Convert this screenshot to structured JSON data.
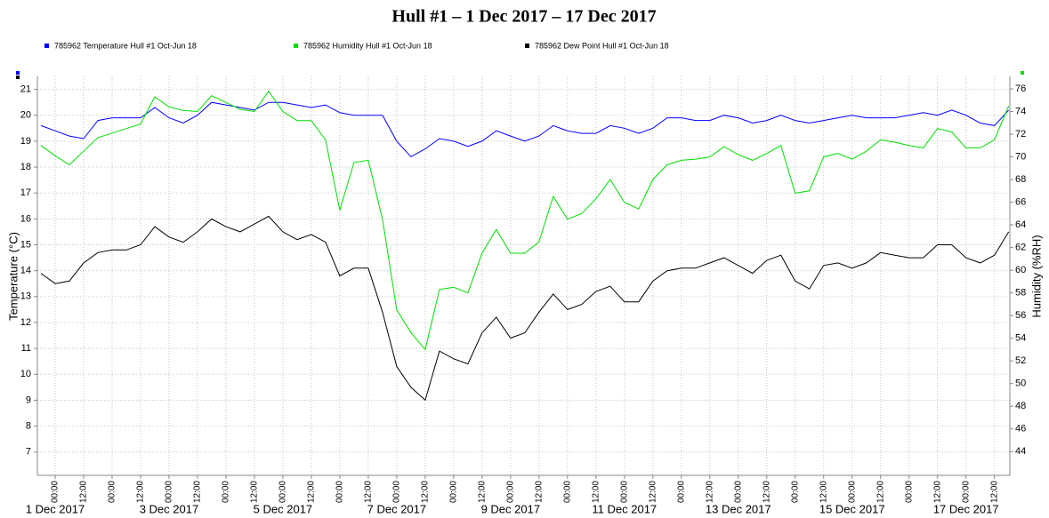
{
  "chart_data": {
    "type": "line",
    "title": "Hull #1 – 1 Dec 2017 – 17 Dec 2017",
    "ylabel": "Temperature (°C)",
    "y2label": "Humidity (%RH)",
    "legend": "top",
    "grid": true,
    "x": [
      "2017-11-30 18:00",
      "2017-12-01 00:00",
      "2017-12-01 06:00",
      "2017-12-01 12:00",
      "2017-12-01 18:00",
      "2017-12-02 00:00",
      "2017-12-02 06:00",
      "2017-12-02 12:00",
      "2017-12-02 18:00",
      "2017-12-03 00:00",
      "2017-12-03 06:00",
      "2017-12-03 12:00",
      "2017-12-03 18:00",
      "2017-12-04 00:00",
      "2017-12-04 06:00",
      "2017-12-04 12:00",
      "2017-12-04 18:00",
      "2017-12-05 00:00",
      "2017-12-05 06:00",
      "2017-12-05 12:00",
      "2017-12-05 18:00",
      "2017-12-06 00:00",
      "2017-12-06 06:00",
      "2017-12-06 12:00",
      "2017-12-06 18:00",
      "2017-12-07 00:00",
      "2017-12-07 06:00",
      "2017-12-07 12:00",
      "2017-12-07 18:00",
      "2017-12-08 00:00",
      "2017-12-08 06:00",
      "2017-12-08 12:00",
      "2017-12-08 18:00",
      "2017-12-09 00:00",
      "2017-12-09 06:00",
      "2017-12-09 12:00",
      "2017-12-09 18:00",
      "2017-12-10 00:00",
      "2017-12-10 06:00",
      "2017-12-10 12:00",
      "2017-12-10 18:00",
      "2017-12-11 00:00",
      "2017-12-11 06:00",
      "2017-12-11 12:00",
      "2017-12-11 18:00",
      "2017-12-12 00:00",
      "2017-12-12 06:00",
      "2017-12-12 12:00",
      "2017-12-12 18:00",
      "2017-12-13 00:00",
      "2017-12-13 06:00",
      "2017-12-13 12:00",
      "2017-12-13 18:00",
      "2017-12-14 00:00",
      "2017-12-14 06:00",
      "2017-12-14 12:00",
      "2017-12-14 18:00",
      "2017-12-15 00:00",
      "2017-12-15 06:00",
      "2017-12-15 12:00",
      "2017-12-15 18:00",
      "2017-12-16 00:00",
      "2017-12-16 06:00",
      "2017-12-16 12:00",
      "2017-12-16 18:00",
      "2017-12-17 00:00",
      "2017-12-17 06:00",
      "2017-12-17 12:00",
      "2017-12-17 18:00"
    ],
    "series": [
      {
        "name": "785962  Temperature Hull #1 Oct-Jun 18",
        "color": "#0000ff",
        "values": [
          19.6,
          19.4,
          19.2,
          19.1,
          19.8,
          19.9,
          19.9,
          19.9,
          20.3,
          19.9,
          19.7,
          20.0,
          20.5,
          20.4,
          20.3,
          20.2,
          20.5,
          20.5,
          20.4,
          20.3,
          20.4,
          20.1,
          20.0,
          20.0,
          20.0,
          19.0,
          18.4,
          18.7,
          19.1,
          19.0,
          18.8,
          19.0,
          19.4,
          19.2,
          19.0,
          19.2,
          19.6,
          19.4,
          19.3,
          19.3,
          19.6,
          19.5,
          19.3,
          19.5,
          19.9,
          19.9,
          19.8,
          19.8,
          20.0,
          19.9,
          19.7,
          19.8,
          20.0,
          19.8,
          19.7,
          19.8,
          19.9,
          20.0,
          19.9,
          19.9,
          19.9,
          20.0,
          20.1,
          20.0,
          20.2,
          20.0,
          19.7,
          19.6,
          20.2
        ]
      },
      {
        "name": "785962  Humidity Hull #1 Oct-Jun 18",
        "color": "#00dd00",
        "axis": "y2",
        "values": [
          71.0,
          70.1,
          69.3,
          70.5,
          71.7,
          72.1,
          72.5,
          72.9,
          75.3,
          74.4,
          74.1,
          74.0,
          75.4,
          74.8,
          74.2,
          74.0,
          75.8,
          74.0,
          73.2,
          73.2,
          71.5,
          65.3,
          69.5,
          69.7,
          64.5,
          56.5,
          54.5,
          53.0,
          58.3,
          58.5,
          58.0,
          61.5,
          63.6,
          61.5,
          61.5,
          62.5,
          66.5,
          64.5,
          65.0,
          66.3,
          68.0,
          66.0,
          65.4,
          68.0,
          69.3,
          69.7,
          69.8,
          70.0,
          70.9,
          70.2,
          69.7,
          70.3,
          71.0,
          66.8,
          67.0,
          70.0,
          70.3,
          69.8,
          70.5,
          71.5,
          71.3,
          71.0,
          70.8,
          72.5,
          72.2,
          70.8,
          70.8,
          71.5,
          74.5
        ]
      },
      {
        "name": "785962  Dew Point Hull #1 Oct-Jun 18",
        "color": "#000000",
        "values": [
          13.9,
          13.5,
          13.6,
          14.3,
          14.7,
          14.8,
          14.8,
          15.0,
          15.7,
          15.3,
          15.1,
          15.5,
          16.0,
          15.7,
          15.5,
          15.8,
          16.1,
          15.5,
          15.2,
          15.4,
          15.1,
          13.8,
          14.1,
          14.1,
          12.4,
          10.3,
          9.5,
          9.0,
          10.9,
          10.6,
          10.4,
          11.6,
          12.2,
          11.4,
          11.6,
          12.4,
          13.1,
          12.5,
          12.7,
          13.2,
          13.4,
          12.8,
          12.8,
          13.6,
          14.0,
          14.1,
          14.1,
          14.3,
          14.5,
          14.2,
          13.9,
          14.4,
          14.6,
          13.6,
          13.3,
          14.2,
          14.3,
          14.1,
          14.3,
          14.7,
          14.6,
          14.5,
          14.5,
          15.0,
          15.0,
          14.5,
          14.3,
          14.6,
          15.5
        ]
      }
    ],
    "xlim": [
      "2017-11-30 16:30",
      "2017-12-17 18:30"
    ],
    "xticks": [
      {
        "value": "2017-12-01 00:00",
        "label": "00:00"
      },
      {
        "value": "2017-12-01 12:00",
        "label": "12:00"
      },
      {
        "value": "2017-12-02 00:00",
        "label": "00:00"
      },
      {
        "value": "2017-12-02 12:00",
        "label": "12:00"
      },
      {
        "value": "2017-12-03 00:00",
        "label": "00:00"
      },
      {
        "value": "2017-12-03 12:00",
        "label": "12:00"
      },
      {
        "value": "2017-12-04 00:00",
        "label": "00:00"
      },
      {
        "value": "2017-12-04 12:00",
        "label": "12:00"
      },
      {
        "value": "2017-12-05 00:00",
        "label": "00:00"
      },
      {
        "value": "2017-12-05 12:00",
        "label": "12:00"
      },
      {
        "value": "2017-12-06 00:00",
        "label": "00:00"
      },
      {
        "value": "2017-12-06 12:00",
        "label": "12:00"
      },
      {
        "value": "2017-12-07 00:00",
        "label": "00:00"
      },
      {
        "value": "2017-12-07 12:00",
        "label": "12:00"
      },
      {
        "value": "2017-12-08 00:00",
        "label": "00:00"
      },
      {
        "value": "2017-12-08 12:00",
        "label": "12:00"
      },
      {
        "value": "2017-12-09 00:00",
        "label": "00:00"
      },
      {
        "value": "2017-12-09 12:00",
        "label": "12:00"
      },
      {
        "value": "2017-12-10 00:00",
        "label": "00:00"
      },
      {
        "value": "2017-12-10 12:00",
        "label": "12:00"
      },
      {
        "value": "2017-12-11 00:00",
        "label": "00:00"
      },
      {
        "value": "2017-12-11 12:00",
        "label": "12:00"
      },
      {
        "value": "2017-12-12 00:00",
        "label": "00:00"
      },
      {
        "value": "2017-12-12 12:00",
        "label": "12:00"
      },
      {
        "value": "2017-12-13 00:00",
        "label": "00:00"
      },
      {
        "value": "2017-12-13 12:00",
        "label": "12:00"
      },
      {
        "value": "2017-12-14 00:00",
        "label": "00:00"
      },
      {
        "value": "2017-12-14 12:00",
        "label": "12:00"
      },
      {
        "value": "2017-12-15 00:00",
        "label": "00:00"
      },
      {
        "value": "2017-12-15 12:00",
        "label": "12:00"
      },
      {
        "value": "2017-12-16 00:00",
        "label": "00:00"
      },
      {
        "value": "2017-12-16 12:00",
        "label": "12:00"
      },
      {
        "value": "2017-12-17 00:00",
        "label": "00:00"
      },
      {
        "value": "2017-12-17 12:00",
        "label": "12:00"
      }
    ],
    "xdate_labels": [
      {
        "value": "2017-12-01 00:00",
        "label": "1 Dec 2017"
      },
      {
        "value": "2017-12-03 00:00",
        "label": "3 Dec 2017"
      },
      {
        "value": "2017-12-05 00:00",
        "label": "5 Dec 2017"
      },
      {
        "value": "2017-12-07 00:00",
        "label": "7 Dec 2017"
      },
      {
        "value": "2017-12-09 00:00",
        "label": "9 Dec 2017"
      },
      {
        "value": "2017-12-11 00:00",
        "label": "11 Dec 2017"
      },
      {
        "value": "2017-12-13 00:00",
        "label": "13 Dec 2017"
      },
      {
        "value": "2017-12-15 00:00",
        "label": "15 Dec 2017"
      },
      {
        "value": "2017-12-17 00:00",
        "label": "17 Dec 2017"
      }
    ],
    "ylim": [
      6.1,
      21.5
    ],
    "yticks": [
      7,
      8,
      9,
      10,
      11,
      12,
      13,
      14,
      15,
      16,
      17,
      18,
      19,
      20,
      21
    ],
    "y2lim": [
      41.9,
      77.1
    ],
    "y2ticks": [
      44,
      46,
      48,
      50,
      52,
      54,
      56,
      58,
      60,
      62,
      64,
      66,
      68,
      70,
      72,
      74,
      76
    ]
  }
}
